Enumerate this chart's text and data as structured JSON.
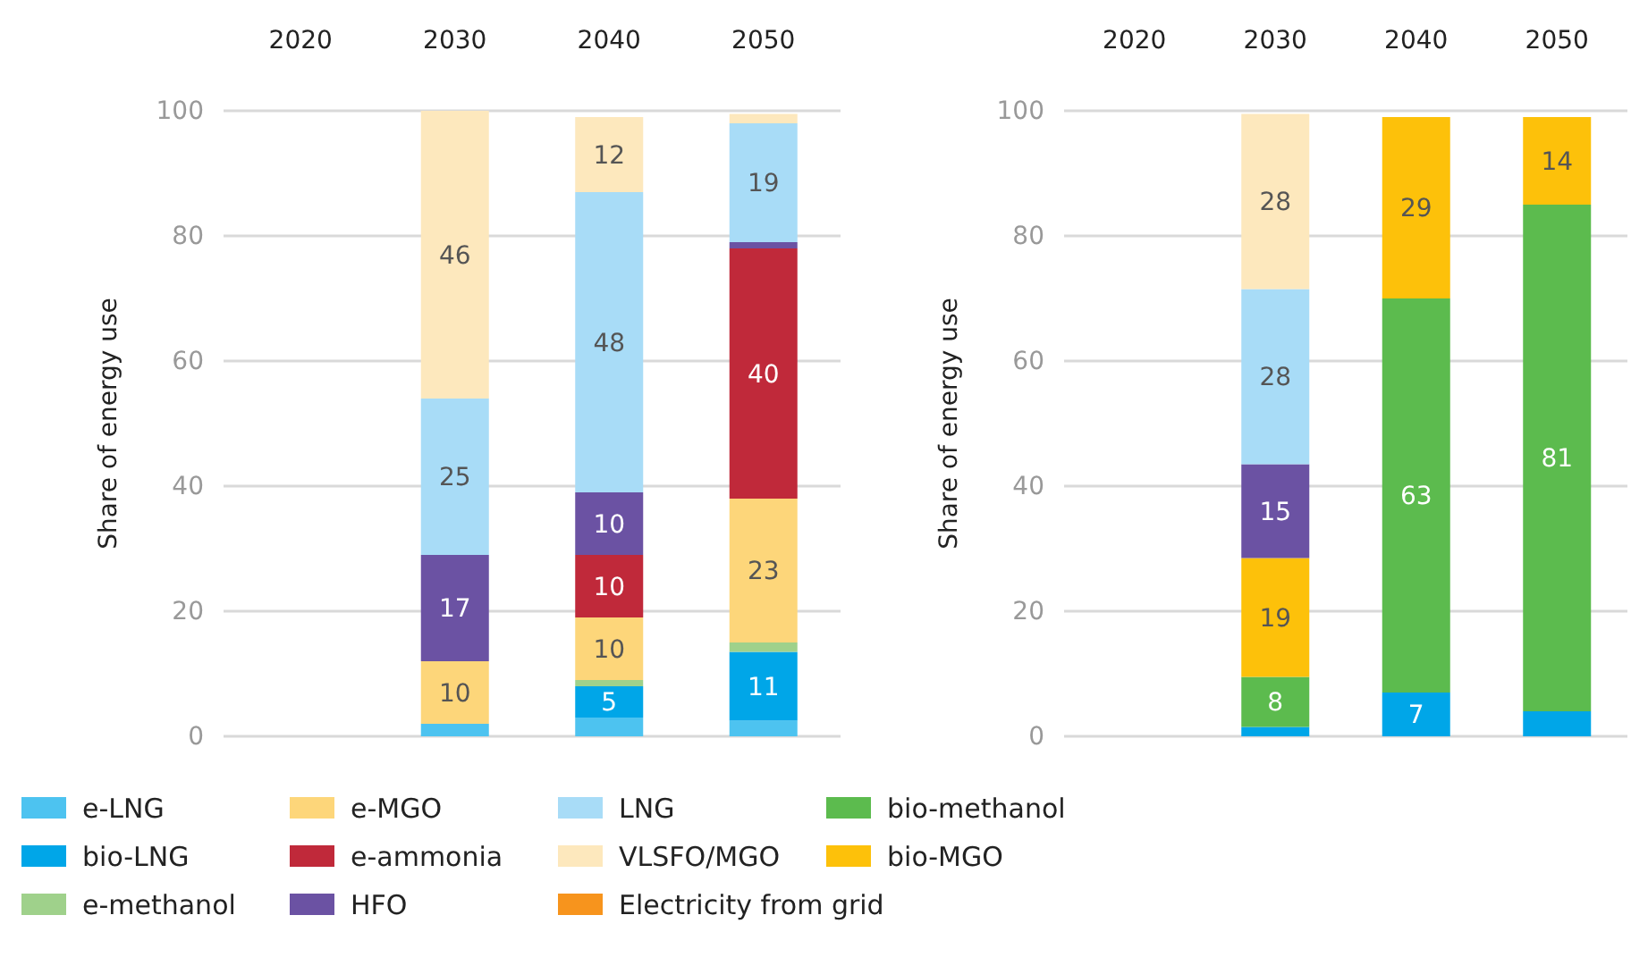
{
  "chart_data": [
    {
      "type": "bar",
      "stacked": true,
      "ylabel": "Share of energy use",
      "categories": [
        "2020",
        "2030",
        "2040",
        "2050"
      ],
      "ylim": [
        0,
        100
      ],
      "yticks": [
        0,
        20,
        40,
        60,
        80,
        100
      ],
      "grid": "y",
      "legend": "bottom",
      "series": [
        {
          "name": "e-LNG",
          "color": "#4dc3f0",
          "values": [
            null,
            2,
            3,
            2.5
          ],
          "value_labels": [
            null,
            null,
            null,
            null
          ]
        },
        {
          "name": "bio-LNG",
          "color": "#00a6e8",
          "values": [
            null,
            null,
            5,
            11
          ],
          "value_labels": [
            null,
            null,
            "5",
            "11"
          ]
        },
        {
          "name": "e-methanol",
          "color": "#9fd18b",
          "values": [
            null,
            null,
            1,
            1.5
          ],
          "value_labels": [
            null,
            null,
            null,
            null
          ]
        },
        {
          "name": "e-MGO",
          "color": "#fdd67a",
          "values": [
            null,
            10,
            10,
            23
          ],
          "value_labels": [
            null,
            "10",
            "10",
            "23"
          ]
        },
        {
          "name": "e-ammonia",
          "color": "#c0293a",
          "values": [
            null,
            null,
            10,
            40
          ],
          "value_labels": [
            null,
            null,
            "10",
            "40"
          ]
        },
        {
          "name": "HFO",
          "color": "#6b52a3",
          "values": [
            null,
            17,
            10,
            1
          ],
          "value_labels": [
            null,
            "17",
            "10",
            null
          ]
        },
        {
          "name": "LNG",
          "color": "#a8dcf7",
          "values": [
            null,
            25,
            48,
            19
          ],
          "value_labels": [
            null,
            "25",
            "48",
            "19"
          ]
        },
        {
          "name": "VLSFO/MGO",
          "color": "#fde8bd",
          "values": [
            null,
            46,
            12,
            1.5
          ],
          "value_labels": [
            null,
            "46",
            "12",
            null
          ]
        },
        {
          "name": "Electricity from grid",
          "color": "#f7941d",
          "values": [
            null,
            null,
            null,
            null
          ],
          "value_labels": [
            null,
            null,
            null,
            null
          ]
        }
      ]
    },
    {
      "type": "bar",
      "stacked": true,
      "ylabel": "Share of energy use",
      "categories": [
        "2020",
        "2030",
        "2040",
        "2050"
      ],
      "ylim": [
        0,
        100
      ],
      "yticks": [
        0,
        20,
        40,
        60,
        80,
        100
      ],
      "grid": "y",
      "legend": "bottom",
      "series": [
        {
          "name": "bio-LNG",
          "color": "#00a6e8",
          "values": [
            null,
            1.5,
            7,
            4
          ],
          "value_labels": [
            null,
            null,
            "7",
            null
          ]
        },
        {
          "name": "bio-methanol",
          "color": "#5cbb4e",
          "values": [
            null,
            8,
            63,
            81
          ],
          "value_labels": [
            null,
            "8",
            "63",
            "81"
          ]
        },
        {
          "name": "bio-MGO",
          "color": "#fdc10a",
          "values": [
            null,
            19,
            29,
            14
          ],
          "value_labels": [
            null,
            "19",
            "29",
            "14"
          ]
        },
        {
          "name": "HFO",
          "color": "#6b52a3",
          "values": [
            null,
            15,
            null,
            null
          ],
          "value_labels": [
            null,
            "15",
            null,
            null
          ]
        },
        {
          "name": "LNG",
          "color": "#a8dcf7",
          "values": [
            null,
            28,
            null,
            null
          ],
          "value_labels": [
            null,
            "28",
            null,
            null
          ]
        },
        {
          "name": "VLSFO/MGO",
          "color": "#fde8bd",
          "values": [
            null,
            28,
            null,
            null
          ],
          "value_labels": [
            null,
            "28",
            null,
            null
          ]
        }
      ]
    }
  ]
}
